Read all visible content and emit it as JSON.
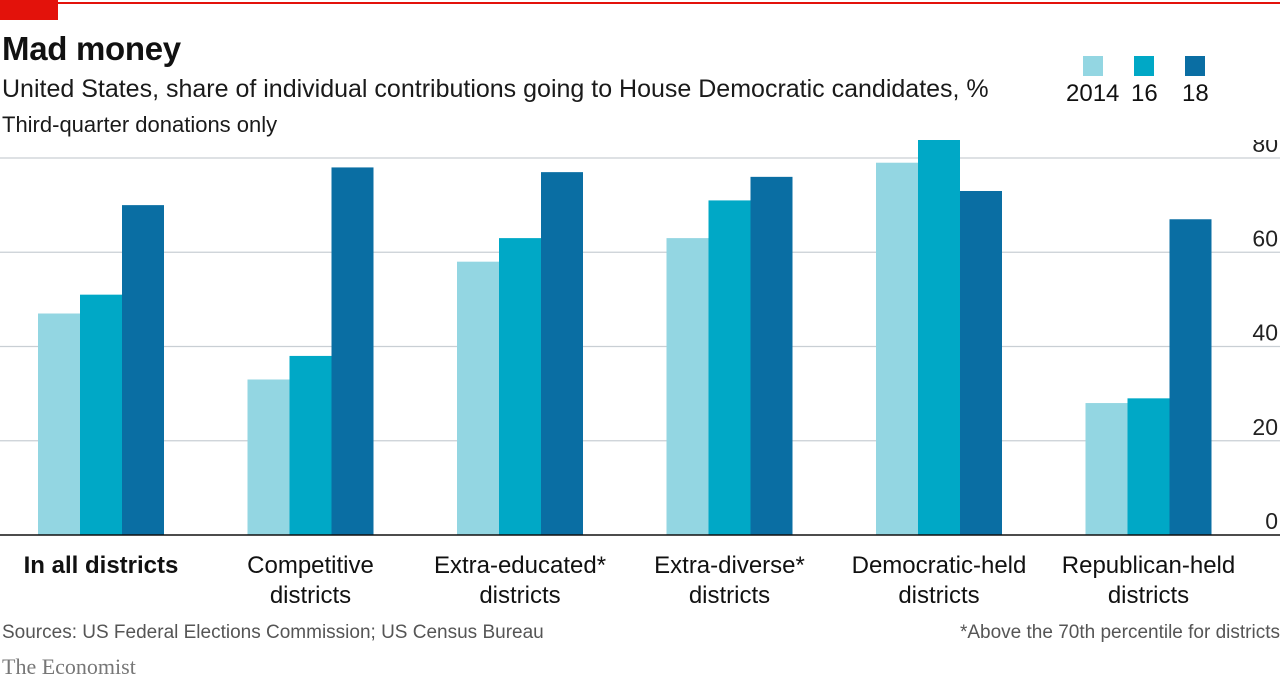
{
  "header": {
    "title": "Mad money",
    "subtitle": "United States, share of individual contributions going to House Democratic candidates, %",
    "note": "Third-quarter donations only"
  },
  "legend": [
    {
      "label": "2014",
      "color": "#93d6e2"
    },
    {
      "label": "16",
      "color": "#00a8c6"
    },
    {
      "label": "18",
      "color": "#0a6ea3"
    }
  ],
  "footer": {
    "sources": "Sources: US Federal Elections Commission; US Census Bureau",
    "footnote": "*Above the 70th percentile for districts",
    "brand": "The Economist"
  },
  "chart_data": {
    "type": "bar",
    "title": "Mad money",
    "subtitle": "United States, share of individual contributions going to House Democratic candidates, %",
    "categories": [
      [
        "In all districts"
      ],
      [
        "Competitive",
        "districts"
      ],
      [
        "Extra-educated*",
        "districts"
      ],
      [
        "Extra-diverse*",
        "districts"
      ],
      [
        "Democratic-held",
        "districts"
      ],
      [
        "Republican-held",
        "districts"
      ]
    ],
    "series": [
      {
        "name": "2014",
        "color": "#93d6e2",
        "values": [
          47,
          33,
          58,
          63,
          79,
          28
        ]
      },
      {
        "name": "16",
        "color": "#00a8c6",
        "values": [
          51,
          38,
          63,
          71,
          84,
          29
        ]
      },
      {
        "name": "18",
        "color": "#0a6ea3",
        "values": [
          70,
          78,
          77,
          76,
          73,
          67
        ]
      }
    ],
    "ylim": [
      0,
      80
    ],
    "yticks": [
      0,
      20,
      40,
      60,
      80
    ],
    "yaxis_side": "right",
    "grid": true,
    "legend_position": "top-right"
  }
}
